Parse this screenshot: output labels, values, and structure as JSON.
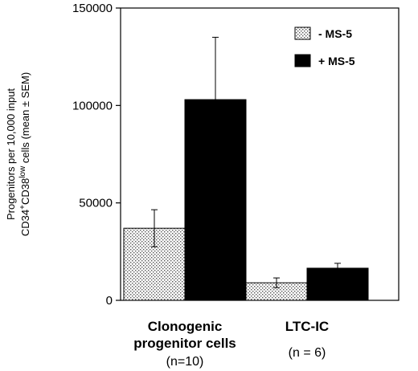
{
  "chart_data": {
    "type": "bar",
    "title": "",
    "xlabel": "",
    "ylabel": {
      "line1": "Progenitors per 10,000 input",
      "line2_parts": [
        {
          "text": "CD34",
          "sup": false
        },
        {
          "text": "+",
          "sup": true
        },
        {
          "text": "CD38",
          "sup": false
        },
        {
          "text": "low",
          "sup": true
        },
        {
          "text": " cells  (mean ± SEM)",
          "sup": false
        }
      ]
    },
    "ylim": [
      0,
      150000
    ],
    "yticks": [
      0,
      50000,
      100000,
      150000
    ],
    "categories": [
      {
        "label_lines": [
          "Clonogenic",
          "progenitor cells"
        ],
        "sub": "(n=10)"
      },
      {
        "label_lines": [
          "LTC-IC"
        ],
        "sub": "(n = 6)"
      }
    ],
    "series": [
      {
        "name": "- MS-5",
        "pattern": "dotted",
        "values": [
          37000,
          9000
        ],
        "errors": [
          9500,
          2500
        ]
      },
      {
        "name": "+ MS-5",
        "pattern": "solid",
        "color": "#000000",
        "values": [
          103000,
          16500
        ],
        "errors": [
          32000,
          2500
        ]
      }
    ],
    "legend_position": "top-right",
    "grid": false
  }
}
